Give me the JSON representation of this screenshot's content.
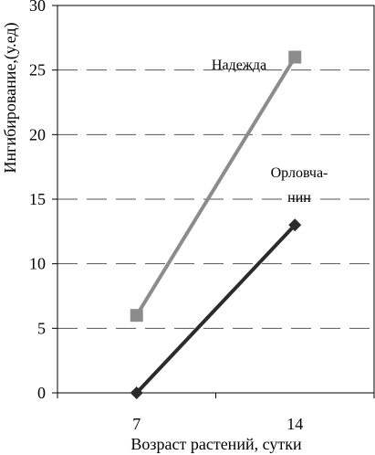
{
  "chart_data": {
    "type": "line",
    "title": "",
    "xlabel": "Возраст растений, сутки",
    "ylabel": "Ингибирование,(у.ед)",
    "categories": [
      "7",
      "14"
    ],
    "ylim": [
      0,
      30
    ],
    "yticks": [
      0,
      5,
      10,
      15,
      20,
      25,
      30
    ],
    "grid": "horizontal dashed",
    "series": [
      {
        "name": "Надежда",
        "values": [
          6,
          26
        ],
        "color": "#8c8c8c",
        "marker": "square"
      },
      {
        "name": "Орловча-\nнин",
        "values": [
          0,
          13
        ],
        "color": "#2b2b2b",
        "marker": "diamond"
      }
    ],
    "annotations": [
      {
        "series": 0,
        "lines": [
          "Надежда"
        ]
      },
      {
        "series": 1,
        "lines": [
          "Орловча-",
          "нин"
        ]
      }
    ]
  }
}
